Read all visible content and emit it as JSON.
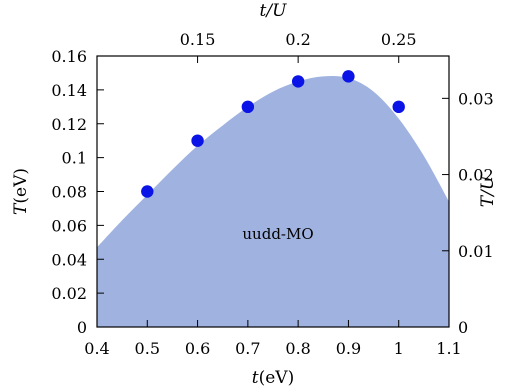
{
  "chart_data": {
    "type": "area",
    "bottom_axis": {
      "label_var": "t",
      "label_unit": "(eV)",
      "range": [
        0.4,
        1.1
      ],
      "ticks": [
        0.4,
        0.5,
        0.6,
        0.7,
        0.8,
        0.9,
        1,
        1.1
      ],
      "tick_labels": [
        "0.4",
        "0.5",
        "0.6",
        "0.7",
        "0.8",
        "0.9",
        "1",
        "1.1"
      ]
    },
    "left_axis": {
      "label_var": "T",
      "label_unit": "(eV)",
      "range": [
        0,
        0.16
      ],
      "ticks": [
        0,
        0.02,
        0.04,
        0.06,
        0.08,
        0.1,
        0.12,
        0.14,
        0.16
      ],
      "tick_labels": [
        "0",
        "0.02",
        "0.04",
        "0.06",
        "0.08",
        "0.1",
        "0.12",
        "0.14",
        "0.16"
      ]
    },
    "top_axis": {
      "label": "t/U",
      "ticks": [
        0.15,
        0.2,
        0.25
      ],
      "tick_labels": [
        "0.15",
        "0.2",
        "0.25"
      ],
      "scale_note": "t/U = t(eV) / 4"
    },
    "right_axis": {
      "label": "T/U",
      "ticks": [
        0,
        0.01,
        0.02,
        0.03
      ],
      "tick_labels": [
        "0",
        "0.01",
        "0.02",
        "0.03"
      ],
      "scale_note": "T/U = T(eV) / 4.5"
    },
    "area_boundary": {
      "x": [
        0.4,
        0.45,
        0.5,
        0.55,
        0.6,
        0.65,
        0.7,
        0.75,
        0.8,
        0.85,
        0.9,
        0.95,
        1.0,
        1.05,
        1.1
      ],
      "y": [
        0.047,
        0.063,
        0.078,
        0.093,
        0.107,
        0.119,
        0.13,
        0.139,
        0.145,
        0.148,
        0.147,
        0.139,
        0.123,
        0.101,
        0.074
      ]
    },
    "points": {
      "x": [
        0.5,
        0.6,
        0.7,
        0.8,
        0.9,
        1.0
      ],
      "y": [
        0.08,
        0.11,
        0.13,
        0.145,
        0.148,
        0.13
      ]
    },
    "annotation": "uudd-MO",
    "annotation_position": {
      "x": 0.76,
      "y": 0.055
    },
    "colors": {
      "area": "#9fb2e0",
      "points": "#0a14e6",
      "axes": "#000000"
    },
    "grid": false,
    "legend": "none"
  }
}
